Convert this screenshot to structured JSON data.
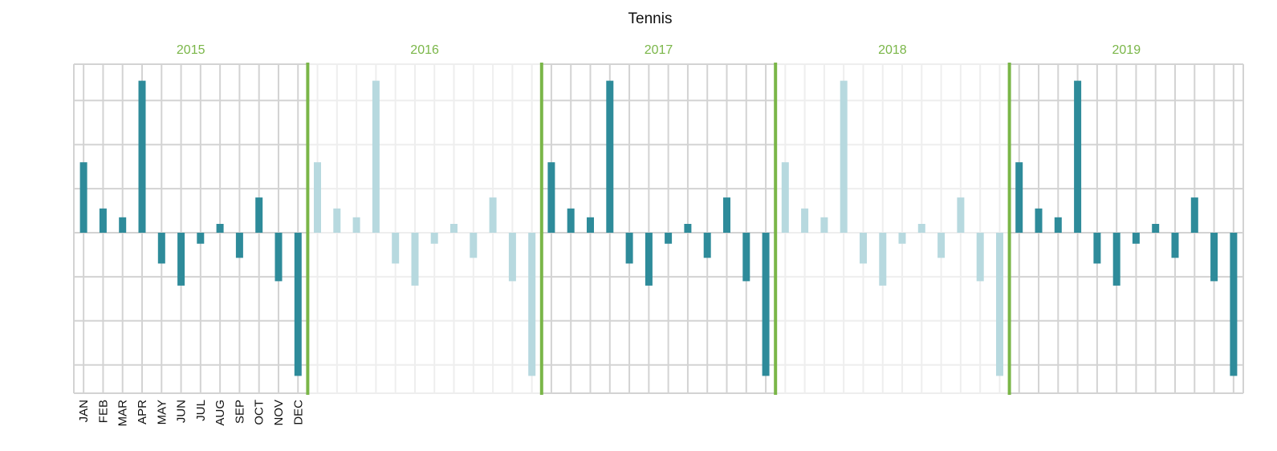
{
  "chart_data": {
    "type": "bar",
    "title": "Tennis",
    "years": [
      "2015",
      "2016",
      "2017",
      "2018",
      "2019"
    ],
    "highlighted_years": [
      "2015",
      "2017",
      "2019"
    ],
    "month_labels": [
      "JAN",
      "FEB",
      "MAR",
      "APR",
      "MAY",
      "JUN",
      "JUL",
      "AUG",
      "SEP",
      "OCT",
      "NOV",
      "DEC"
    ],
    "series": [
      {
        "values": [
          1.6,
          0.55,
          0.35,
          3.45,
          -0.7,
          -1.2,
          -0.25,
          0.2,
          -0.57,
          0.8,
          -1.1,
          -3.25
        ]
      }
    ],
    "ylim": [
      -3.65,
      3.8
    ],
    "grid": true,
    "legend": "none"
  },
  "colors": {
    "bar": "#2e8b9a",
    "bar_faded": "#b7d9df",
    "grid": "#d3d3d3",
    "grid_faded": "#eeeeee",
    "year_divider": "#7ab648",
    "year_label": "#7ab648"
  }
}
